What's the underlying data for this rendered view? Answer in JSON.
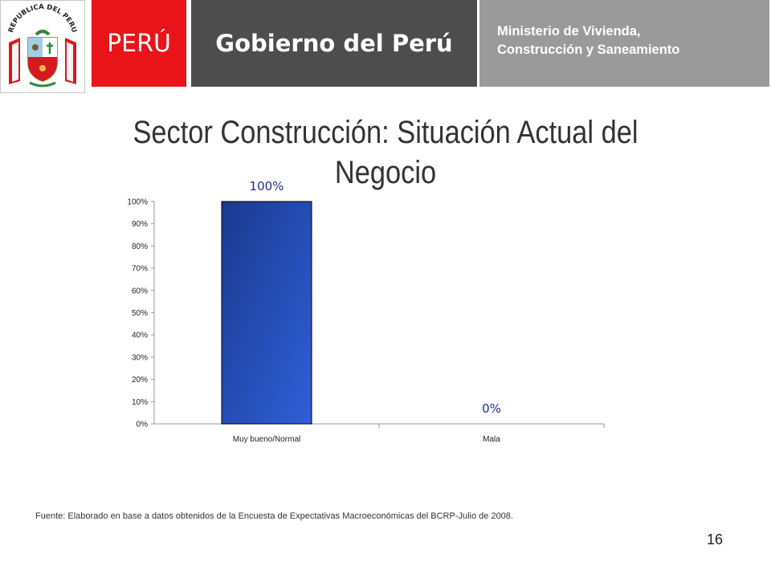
{
  "header": {
    "emblem_text": "REPUBLICA DEL PERU",
    "country": "PERÚ",
    "government": "Gobierno del Perú",
    "ministry_line1": "Ministerio de Vivienda,",
    "ministry_line2": "Construcción y Saneamiento",
    "colors": {
      "red": "#e8141a",
      "dark": "#4d4d4d",
      "gray": "#9a9a9a"
    }
  },
  "slide": {
    "title_line1": "Sector Construcción: Situación Actual del",
    "title_line2": "Negocio",
    "source": "Fuente: Elaborado en base a datos obtenidos de la  Encuesta de Expectativas Macroeconómicas del BCRP-Julio de 2008.",
    "page_number": "16"
  },
  "chart_data": {
    "type": "bar",
    "categories": [
      "Muy bueno/Normal",
      "Mala"
    ],
    "values": [
      100,
      0
    ],
    "data_labels": [
      "100%",
      "0%"
    ],
    "yticks": [
      "0%",
      "10%",
      "20%",
      "30%",
      "40%",
      "50%",
      "60%",
      "70%",
      "80%",
      "90%",
      "100%"
    ],
    "ylim": [
      0,
      100
    ],
    "grid": false,
    "bar_color": "#2f5fd8",
    "label_color": "#1c2f8c"
  }
}
